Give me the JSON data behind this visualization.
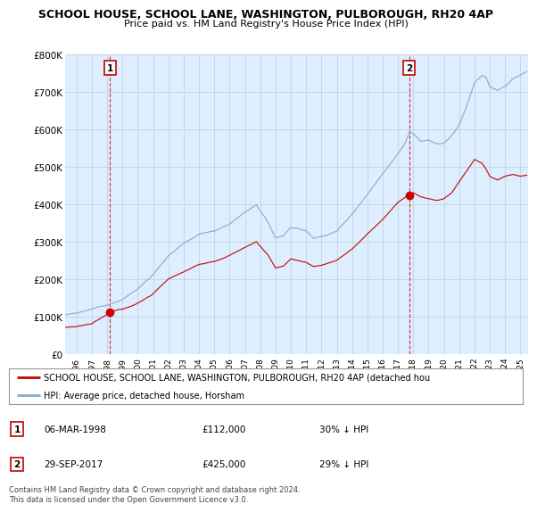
{
  "title1": "SCHOOL HOUSE, SCHOOL LANE, WASHINGTON, PULBOROUGH, RH20 4AP",
  "title2": "Price paid vs. HM Land Registry's House Price Index (HPI)",
  "ylim": [
    0,
    800000
  ],
  "yticks": [
    0,
    100000,
    200000,
    300000,
    400000,
    500000,
    600000,
    700000,
    800000
  ],
  "ytick_labels": [
    "£0",
    "£100K",
    "£200K",
    "£300K",
    "£400K",
    "£500K",
    "£600K",
    "£700K",
    "£800K"
  ],
  "xlim_start": 1995.25,
  "xlim_end": 2025.5,
  "xtick_years": [
    1996,
    1997,
    1998,
    1999,
    2000,
    2001,
    2002,
    2003,
    2004,
    2005,
    2006,
    2007,
    2008,
    2009,
    2010,
    2011,
    2012,
    2013,
    2014,
    2015,
    2016,
    2017,
    2018,
    2019,
    2020,
    2021,
    2022,
    2023,
    2024,
    2025
  ],
  "sale1_x": 1998.18,
  "sale1_y": 112000,
  "sale1_label": "1",
  "sale2_x": 2017.74,
  "sale2_y": 425000,
  "sale2_label": "2",
  "sale_color": "#cc0000",
  "hpi_color": "#88aacc",
  "plot_bg_color": "#ddeeff",
  "legend_property": "SCHOOL HOUSE, SCHOOL LANE, WASHINGTON, PULBOROUGH, RH20 4AP (detached hou",
  "legend_hpi": "HPI: Average price, detached house, Horsham",
  "annotation1_date": "06-MAR-1998",
  "annotation1_price": "£112,000",
  "annotation1_hpi": "30% ↓ HPI",
  "annotation2_date": "29-SEP-2017",
  "annotation2_price": "£425,000",
  "annotation2_hpi": "29% ↓ HPI",
  "footer": "Contains HM Land Registry data © Crown copyright and database right 2024.\nThis data is licensed under the Open Government Licence v3.0.",
  "bg_color": "#ffffff",
  "grid_color": "#bbccdd"
}
